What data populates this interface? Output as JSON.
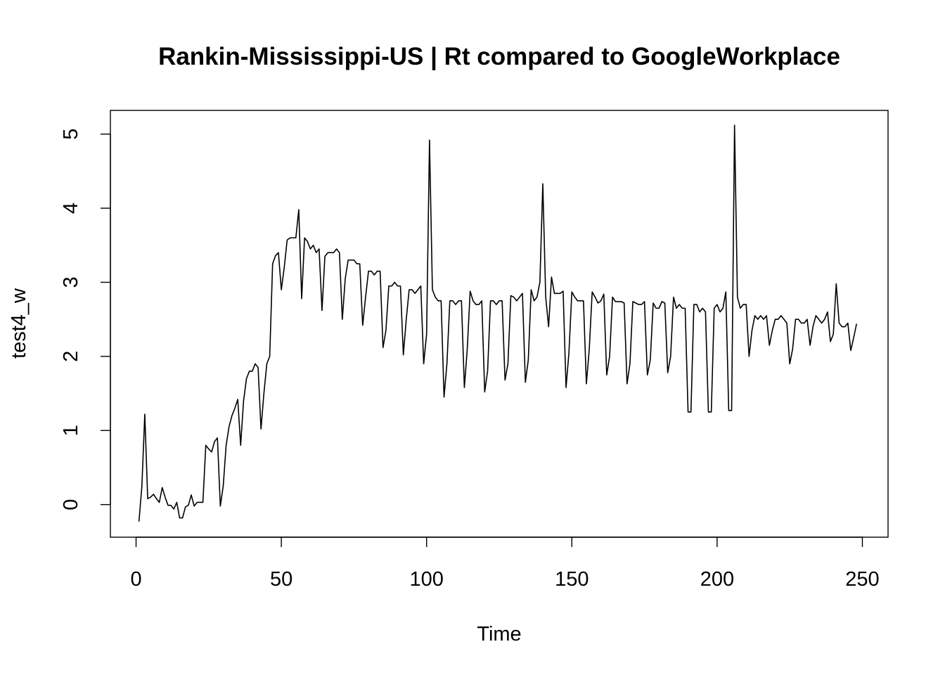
{
  "chart_data": {
    "type": "line",
    "title": "Rankin-Mississippi-US | Rt compared to GoogleWorkplace",
    "xlabel": "Time",
    "ylabel": "test4_w",
    "xlim": [
      -8.84,
      258.84
    ],
    "ylim": [
      -0.44,
      5.32
    ],
    "xticks": [
      0,
      50,
      100,
      150,
      200,
      250
    ],
    "yticks": [
      0,
      1,
      2,
      3,
      4,
      5
    ],
    "grid": false,
    "series": [
      {
        "name": "test4_w",
        "color": "#000000",
        "x": [
          1,
          2,
          3,
          4,
          5,
          6,
          7,
          8,
          9,
          10,
          11,
          12,
          13,
          14,
          15,
          16,
          17,
          18,
          19,
          20,
          21,
          22,
          23,
          24,
          25,
          26,
          27,
          28,
          29,
          30,
          31,
          32,
          33,
          34,
          35,
          36,
          37,
          38,
          39,
          40,
          41,
          42,
          43,
          44,
          45,
          46,
          47,
          48,
          49,
          50,
          51,
          52,
          53,
          54,
          55,
          56,
          57,
          58,
          59,
          60,
          61,
          62,
          63,
          64,
          65,
          66,
          67,
          68,
          69,
          70,
          71,
          72,
          73,
          74,
          75,
          76,
          77,
          78,
          79,
          80,
          81,
          82,
          83,
          84,
          85,
          86,
          87,
          88,
          89,
          90,
          91,
          92,
          93,
          94,
          95,
          96,
          97,
          98,
          99,
          100,
          101,
          102,
          103,
          104,
          105,
          106,
          107,
          108,
          109,
          110,
          111,
          112,
          113,
          114,
          115,
          116,
          117,
          118,
          119,
          120,
          121,
          122,
          123,
          124,
          125,
          126,
          127,
          128,
          129,
          130,
          131,
          132,
          133,
          134,
          135,
          136,
          137,
          138,
          139,
          140,
          141,
          142,
          143,
          144,
          145,
          146,
          147,
          148,
          149,
          150,
          151,
          152,
          153,
          154,
          155,
          156,
          157,
          158,
          159,
          160,
          161,
          162,
          163,
          164,
          165,
          166,
          167,
          168,
          169,
          170,
          171,
          172,
          173,
          174,
          175,
          176,
          177,
          178,
          179,
          180,
          181,
          182,
          183,
          184,
          185,
          186,
          187,
          188,
          189,
          190,
          191,
          192,
          193,
          194,
          195,
          196,
          197,
          198,
          199,
          200,
          201,
          202,
          203,
          204,
          205,
          206,
          207,
          208,
          209,
          210,
          211,
          212,
          213,
          214,
          215,
          216,
          217,
          218,
          219,
          220,
          221,
          222,
          223,
          224,
          225,
          226,
          227,
          228,
          229,
          230,
          231,
          232,
          233,
          234,
          235,
          236,
          237,
          238,
          239,
          240,
          241,
          242,
          243,
          244,
          245,
          246,
          247,
          248
        ],
        "y": [
          -0.23,
          0.25,
          1.22,
          0.08,
          0.1,
          0.14,
          0.08,
          0.03,
          0.23,
          0.1,
          -0.01,
          -0.01,
          -0.06,
          0.03,
          -0.18,
          -0.18,
          -0.03,
          -0.01,
          0.13,
          -0.02,
          0.03,
          0.03,
          0.03,
          0.8,
          0.75,
          0.71,
          0.85,
          0.9,
          -0.02,
          0.25,
          0.8,
          1.05,
          1.2,
          1.3,
          1.42,
          0.8,
          1.4,
          1.7,
          1.8,
          1.8,
          1.9,
          1.85,
          1.02,
          1.5,
          1.9,
          2.0,
          3.25,
          3.36,
          3.4,
          2.9,
          3.2,
          3.57,
          3.6,
          3.6,
          3.6,
          3.98,
          2.78,
          3.6,
          3.55,
          3.45,
          3.5,
          3.4,
          3.45,
          2.62,
          3.35,
          3.4,
          3.4,
          3.4,
          3.45,
          3.4,
          2.5,
          3.05,
          3.3,
          3.3,
          3.3,
          3.25,
          3.25,
          2.42,
          2.8,
          3.15,
          3.15,
          3.1,
          3.15,
          3.15,
          2.12,
          2.35,
          2.95,
          2.95,
          3.0,
          2.95,
          2.95,
          2.02,
          2.5,
          2.9,
          2.9,
          2.85,
          2.9,
          2.95,
          1.9,
          2.3,
          4.92,
          2.9,
          2.8,
          2.75,
          2.75,
          1.45,
          1.9,
          2.75,
          2.75,
          2.7,
          2.75,
          2.75,
          1.58,
          2.1,
          2.88,
          2.75,
          2.7,
          2.7,
          2.75,
          1.52,
          1.8,
          2.75,
          2.75,
          2.7,
          2.75,
          2.75,
          1.68,
          1.9,
          2.82,
          2.8,
          2.75,
          2.8,
          2.85,
          1.65,
          1.95,
          2.9,
          2.75,
          2.8,
          3.0,
          4.33,
          2.8,
          2.4,
          3.07,
          2.85,
          2.85,
          2.85,
          2.88,
          1.58,
          2.05,
          2.87,
          2.8,
          2.75,
          2.75,
          2.75,
          1.63,
          2.1,
          2.87,
          2.8,
          2.72,
          2.75,
          2.84,
          1.75,
          2.0,
          2.8,
          2.74,
          2.74,
          2.74,
          2.72,
          1.63,
          1.9,
          2.74,
          2.72,
          2.7,
          2.7,
          2.74,
          1.75,
          1.95,
          2.72,
          2.65,
          2.65,
          2.74,
          2.72,
          1.78,
          2.0,
          2.8,
          2.65,
          2.7,
          2.65,
          2.65,
          1.25,
          1.25,
          2.7,
          2.7,
          2.6,
          2.65,
          2.6,
          1.25,
          1.25,
          2.65,
          2.7,
          2.6,
          2.65,
          2.87,
          1.27,
          1.27,
          5.12,
          2.8,
          2.65,
          2.7,
          2.7,
          2.0,
          2.35,
          2.55,
          2.5,
          2.55,
          2.5,
          2.55,
          2.15,
          2.35,
          2.5,
          2.5,
          2.55,
          2.5,
          2.45,
          1.9,
          2.1,
          2.5,
          2.5,
          2.45,
          2.45,
          2.5,
          2.15,
          2.4,
          2.55,
          2.5,
          2.45,
          2.5,
          2.6,
          2.2,
          2.3,
          2.98,
          2.45,
          2.4,
          2.4,
          2.45,
          2.08,
          2.25,
          2.44
        ]
      }
    ]
  }
}
